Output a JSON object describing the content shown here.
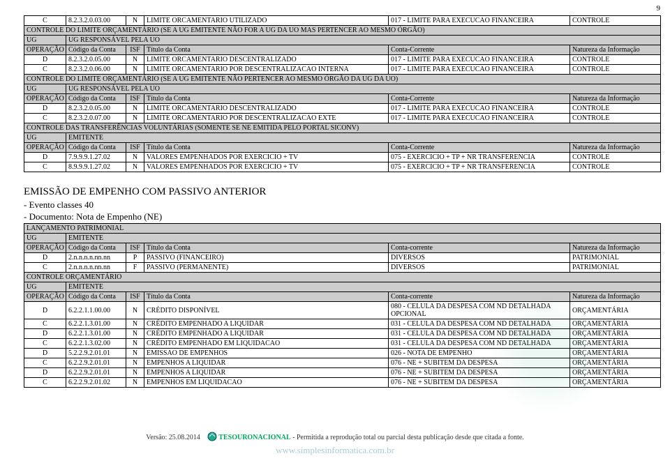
{
  "pageNumber": "9",
  "colHeaders": {
    "operacao": "OPERAÇÃO",
    "codigo": "Código da Conta",
    "isf": "ISF",
    "titulo": "Título da Conta",
    "contaCorrente": "Conta-Corrente",
    "contaCorrenteLower": "Conta-corrente",
    "natureza": "Natureza da Informação"
  },
  "ugLabel": "UG",
  "ugResp": "UG RESPONSÁVEL PELA UO",
  "emitente": "EMITENTE",
  "table1": {
    "rows": [
      {
        "op": "C",
        "cod": "8.2.3.2.0.03.00",
        "isf": "N",
        "titulo": "LIMITE ORCAMENTARIO UTILIZADO",
        "cc": "017 - LIMITE PARA EXECUCAO FINANCEIRA",
        "nat": "CONTROLE"
      }
    ],
    "section1": "CONTROLE DO LIMITE ORÇAMENTÁRIO (SE A UG EMITENTE NÃO FOR A UG DA UO MAS PERTENCER AO MESMO ÓRGÃO)",
    "rows2": [
      {
        "op": "D",
        "cod": "8.2.3.2.0.05.00",
        "isf": "N",
        "titulo": "LIMITE ORCAMENTARIO DESCENTRALIZADO",
        "cc": "017 - LIMITE PARA EXECUCAO FINANCEIRA",
        "nat": "CONTROLE"
      },
      {
        "op": "C",
        "cod": "8.2.3.2.0.06.00",
        "isf": "N",
        "titulo": "LIMITE ORCAMENTARIO POR DESCENTRALIZACAO INTERNA",
        "cc": "017 - LIMITE PARA EXECUCAO FINANCEIRA",
        "nat": "CONTROLE"
      }
    ],
    "section2": "CONTROLE DO LIMITE ORÇAMENTÁRIO (SE A UG EMITENTE NÃO PERTENCER AO MESMO ÓRGÃO DA UG DA UO)",
    "rows3": [
      {
        "op": "D",
        "cod": "8.2.3.2.0.05.00",
        "isf": "N",
        "titulo": "LIMITE ORCAMENTARIO DESCENTRALIZADO",
        "cc": "017 - LIMITE PARA EXECUCAO FINANCEIRA",
        "nat": "CONTROLE"
      },
      {
        "op": "C",
        "cod": "8.2.3.2.0.07.00",
        "isf": "N",
        "titulo": "LIMITE ORCAMENTARIO POR DESCENTRALIZACAO EXTE",
        "cc": "017 - LIMITE PARA EXECUCAO FINANCEIRA",
        "nat": "CONTROLE"
      }
    ],
    "section3": "CONTROLE DAS TRANSFERÊNCIAS VOLUNTÁRIAS (SOMENTE SE NE EMITIDA PELO PORTAL SICONV)",
    "rows4": [
      {
        "op": "D",
        "cod": "7.9.9.9.1.27.02",
        "isf": "N",
        "titulo": "VALORES EMPENHADOS POR EXERCICIO + TV",
        "cc": "075 - EXERCICIO + TP + NR TRANSFERENCIA",
        "nat": "CONTROLE"
      },
      {
        "op": "C",
        "cod": "8.9.9.9.1.27.02",
        "isf": "N",
        "titulo": "VALORES EMPENHADOS POR EXERCICIO + TV",
        "cc": "075 - EXERCICIO + TP + NR TRANSFERENCIA",
        "nat": "CONTROLE"
      }
    ]
  },
  "emissao": {
    "title": "EMISSÃO DE EMPENHO COM PASSIVO ANTERIOR",
    "sub1": "- Evento classes 40",
    "sub2": "- Documento: Nota de Empenho (NE)",
    "lancPatrimonial": "LANÇAMENTO PATRIMONIAL",
    "rowsPat": [
      {
        "op": "D",
        "cod": "2.n.n.n.n.nn.nn",
        "isf": "P",
        "titulo": "PASSIVO (FINANCEIRO)",
        "cc": "DIVERSOS",
        "nat": "PATRIMONIAL"
      },
      {
        "op": "C",
        "cod": "2.n.n.n.n.nn.nn",
        "isf": "F",
        "titulo": "PASSIVO (PERMANENTE)",
        "cc": "DIVERSOS",
        "nat": "PATRIMONIAL"
      }
    ],
    "controleOrc": "CONTROLE ORÇAMENTÁRIO",
    "rowsOrc": [
      {
        "op": "D",
        "cod": "6.2.2.1.1.00.00",
        "isf": "N",
        "titulo": "CRÉDITO DISPONÍVEL",
        "cc": "080 - CELULA DA DESPESA COM ND DETALHADA OPCIONAL",
        "nat": "ORÇAMENTÁRIA"
      },
      {
        "op": "C",
        "cod": "6.2.2.1.3.01.00",
        "isf": "N",
        "titulo": "CRÉDITO EMPENHADO A LIQUIDAR",
        "cc": "031 - CELULA DA DESPESA COM ND DETALHADA",
        "nat": "ORÇAMENTÁRIA"
      },
      {
        "op": "D",
        "cod": "6.2.2.1.3.01.00",
        "isf": "N",
        "titulo": "CRÉDITO EMPENHADO A LIQUIDAR",
        "cc": "031 - CELULA DA DESPESA COM ND DETALHADA",
        "nat": "ORÇAMENTÁRIA"
      },
      {
        "op": "C",
        "cod": "6.2.2.1.3.02.00",
        "isf": "N",
        "titulo": "CRÉDITO EMPENHADO EM LIQUIDACAO",
        "cc": "031 - CELULA DA DESPESA COM ND DETALHADA",
        "nat": "ORÇAMENTÁRIA"
      },
      {
        "op": "D",
        "cod": "5.2.2.9.2.01.01",
        "isf": "N",
        "titulo": "EMISSAO DE EMPENHOS",
        "cc": "026 - NOTA DE EMPENHO",
        "nat": "ORÇAMENTÁRIA"
      },
      {
        "op": "C",
        "cod": "6.2.2.9.2.01.01",
        "isf": "N",
        "titulo": "EMPENHOS A LIQUIDAR",
        "cc": "076 - NE + SUBITEM DA DESPESA",
        "nat": "ORÇAMENTÁRIA"
      },
      {
        "op": "D",
        "cod": "6.2.2.9.2.01.01",
        "isf": "N",
        "titulo": "EMPENHOS A LIQUIDAR",
        "cc": "076 - NE + SUBITEM DA DESPESA",
        "nat": "ORÇAMENTÁRIA"
      },
      {
        "op": "C",
        "cod": "6.2.2.9.2.01.02",
        "isf": "N",
        "titulo": "EMPENHOS EM LIQUIDACAO",
        "cc": "076 - NE + SUBITEM DA DESPESA",
        "nat": "ORÇAMENTÁRIA"
      }
    ]
  },
  "footer": {
    "versao": "Versão: 25.08.2014",
    "tesouro": "TESOURONACIONAL",
    "permitida": " - Permitida a reprodução total ou parcial desta publicação desde que citada a fonte.",
    "site": "www.simplesinformatica.com.br"
  }
}
